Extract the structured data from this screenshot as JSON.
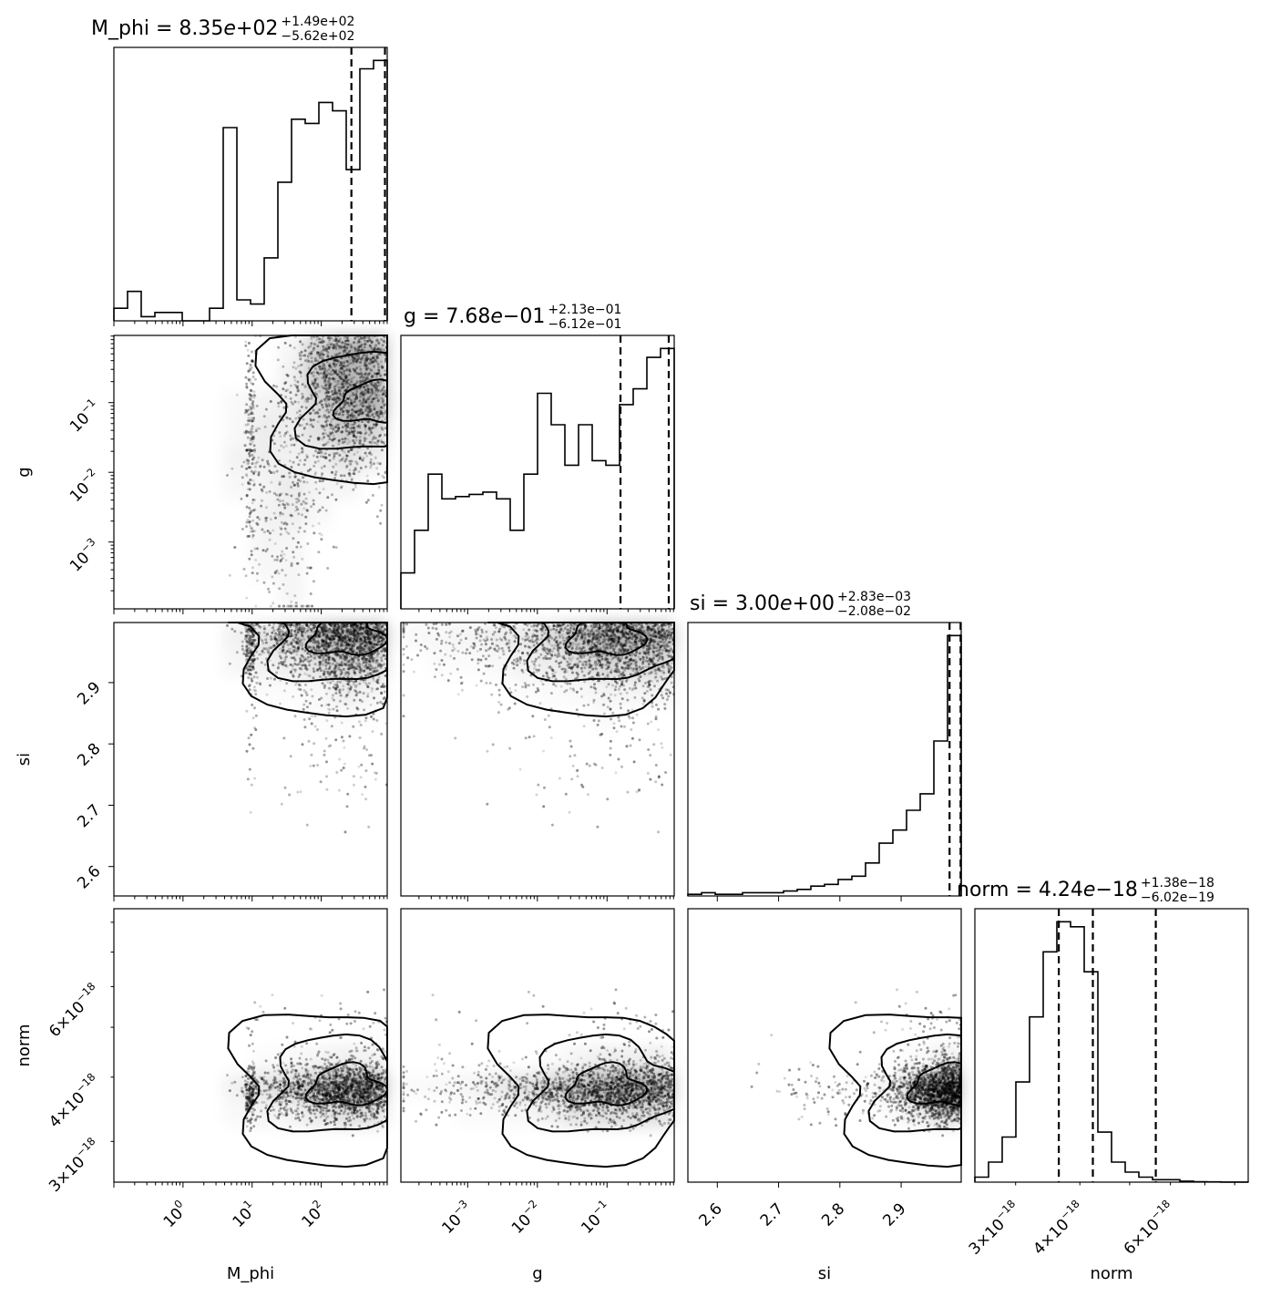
{
  "chart_data": {
    "type": "corner",
    "parameters": [
      "M_phi",
      "g",
      "si",
      "norm"
    ],
    "titles": [
      {
        "param": "M_phi",
        "prefix": "M_phi = 8.35",
        "exp": "+02",
        "upper": "+1.49e+02",
        "lower": "−5.62e+02"
      },
      {
        "param": "g",
        "prefix": "g = 7.68",
        "exp": "−01",
        "upper": "+2.13e−01",
        "lower": "−6.12e−01"
      },
      {
        "param": "si",
        "prefix": "si = 3.00",
        "exp": "+00",
        "upper": "+2.83e−03",
        "lower": "−2.08e−02"
      },
      {
        "param": "norm",
        "prefix": "norm = 4.24",
        "exp": "−18",
        "upper": "+1.38e−18",
        "lower": "−6.02e−19"
      }
    ],
    "axis_labels": {
      "x": [
        "M_phi",
        "g",
        "si",
        "norm"
      ],
      "y": [
        "g",
        "si",
        "norm"
      ]
    },
    "ticks": {
      "M_phi": {
        "scale": "log",
        "range": [
          0.1,
          900
        ],
        "labels": [
          {
            "v": 1,
            "base": "10",
            "exp": "0"
          },
          {
            "v": 10,
            "base": "10",
            "exp": "1"
          },
          {
            "v": 100,
            "base": "10",
            "exp": "2"
          }
        ]
      },
      "g": {
        "scale": "log",
        "range": [
          0.00011,
          0.92
        ],
        "labels": [
          {
            "v": 0.001,
            "base": "10",
            "exp": "−3"
          },
          {
            "v": 0.01,
            "base": "10",
            "exp": "−2"
          },
          {
            "v": 0.1,
            "base": "10",
            "exp": "−1"
          }
        ]
      },
      "si": {
        "scale": "linear",
        "range": [
          2.552,
          2.998
        ],
        "labels": [
          {
            "v": 2.6,
            "text": "2.6"
          },
          {
            "v": 2.7,
            "text": "2.7"
          },
          {
            "v": 2.8,
            "text": "2.8"
          },
          {
            "v": 2.9,
            "text": "2.9"
          }
        ]
      },
      "norm": {
        "scale": "log",
        "range": [
          2.5e-18,
          8.5e-18
        ],
        "labels": [
          {
            "v": 3e-18,
            "base": "3×10",
            "exp": "−18"
          },
          {
            "v": 4e-18,
            "base": "4×10",
            "exp": "−18"
          },
          {
            "v": 6e-18,
            "base": "6×10",
            "exp": "−18"
          }
        ]
      }
    },
    "histograms": {
      "M_phi": {
        "counts": [
          3,
          7,
          1,
          2,
          2,
          0,
          0,
          3,
          46,
          5,
          4,
          15,
          33,
          48,
          47,
          52,
          50,
          36,
          60,
          62
        ],
        "quantiles": [
          273,
          835,
          984
        ]
      },
      "g": {
        "counts": [
          16,
          35,
          60,
          49,
          50,
          51,
          52,
          49,
          35,
          60,
          96,
          82,
          64,
          82,
          66,
          64,
          91,
          98,
          112,
          116
        ],
        "quantiles": [
          0.156,
          0.768,
          0.981
        ]
      },
      "si": {
        "counts": [
          0.5,
          1,
          0.5,
          0.5,
          1,
          1,
          1,
          1.5,
          2,
          3,
          3.5,
          5,
          6,
          10,
          16,
          20,
          26,
          31,
          47,
          79
        ],
        "quantiles": [
          2.979,
          2.997,
          3.003
        ]
      },
      "norm": {
        "counts": [
          1,
          4,
          9,
          20,
          33,
          46,
          52,
          51,
          42,
          10,
          4,
          2,
          1,
          0.5,
          0.5,
          0.2,
          0.1,
          0.05,
          0.02,
          0.01
        ],
        "quantiles": [
          3.64e-18,
          4.24e-18,
          5.62e-18
        ]
      }
    }
  }
}
